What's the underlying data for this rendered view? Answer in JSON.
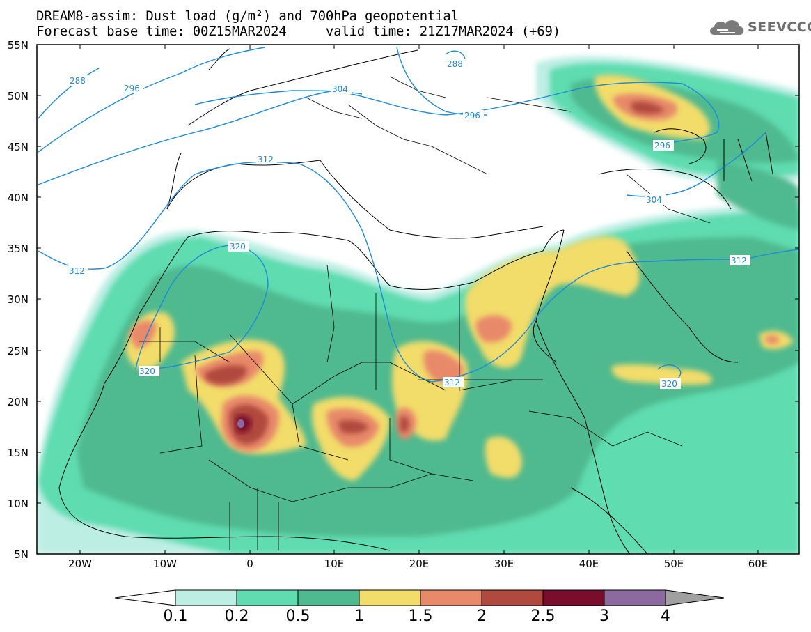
{
  "header": {
    "title_line1": "DREAM8-assim: Dust load (g/m²) and 700hPa geopotential",
    "title_line2": "Forecast base time: 00Z15MAR2024     valid time: 21Z17MAR2024 (+69)"
  },
  "logo": {
    "text": "SEEVCCC",
    "icon": "cloud-icon"
  },
  "map": {
    "latitude_labels": [
      "55N",
      "50N",
      "45N",
      "40N",
      "35N",
      "30N",
      "25N",
      "20N",
      "15N",
      "10N",
      "5N"
    ],
    "longitude_labels": [
      "20W",
      "10W",
      "0",
      "10E",
      "20E",
      "30E",
      "40E",
      "50E",
      "60E"
    ],
    "contour_labels": [
      "288",
      "296",
      "304",
      "312",
      "320",
      "288",
      "296",
      "296",
      "304",
      "312",
      "320",
      "312",
      "320",
      "312"
    ],
    "contour_color": "#1e8ad6"
  },
  "colorbar": {
    "levels": [
      "0.1",
      "0.2",
      "0.5",
      "1",
      "1.5",
      "2",
      "2.5",
      "3",
      "4"
    ],
    "colors": [
      "#ffffff",
      "#bdeee4",
      "#5fdcb0",
      "#4fb98f",
      "#f2dc6a",
      "#e8896a",
      "#b04a3e",
      "#7a0c2c",
      "#8c6aa0",
      "#a0a0a0"
    ]
  }
}
